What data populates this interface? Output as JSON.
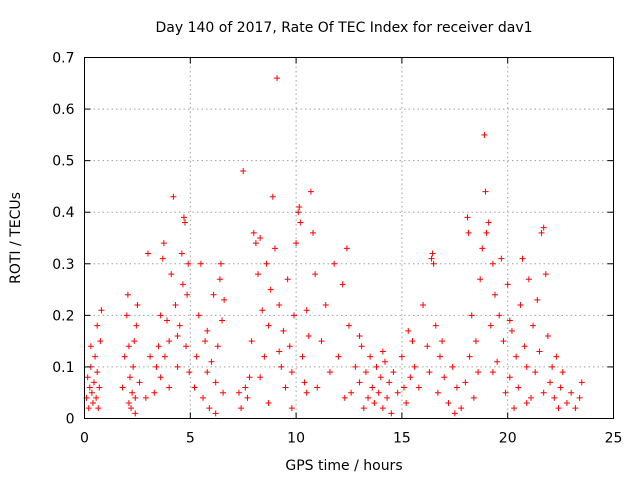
{
  "chart_data": {
    "type": "scatter",
    "title": "Day 140 of 2017, Rate Of TEC Index for receiver dav1",
    "xlabel": "GPS time / hours",
    "ylabel": "ROTI / TECUs",
    "xlim": [
      0,
      25
    ],
    "ylim": [
      0,
      0.7
    ],
    "xticks": [
      0,
      5,
      10,
      15,
      20,
      25
    ],
    "xtick_labels": [
      "0",
      "5",
      "10",
      "15",
      "20",
      "25"
    ],
    "yticks": [
      0,
      0.1,
      0.2,
      0.3,
      0.4,
      0.5,
      0.6,
      0.7
    ],
    "ytick_labels": [
      "0",
      "0.1",
      "0.2",
      "0.3",
      "0.4",
      "0.5",
      "0.6",
      "0.7"
    ],
    "grid": true,
    "marker": "+",
    "color": "#ff0000",
    "series": [
      {
        "points": [
          [
            0.1,
            0.04
          ],
          [
            0.15,
            0.08
          ],
          [
            0.2,
            0.02
          ],
          [
            0.25,
            0.06
          ],
          [
            0.3,
            0.1
          ],
          [
            0.35,
            0.05
          ],
          [
            0.4,
            0.03
          ],
          [
            0.45,
            0.07
          ],
          [
            0.5,
            0.12
          ],
          [
            0.55,
            0.04
          ],
          [
            0.6,
            0.09
          ],
          [
            0.65,
            0.02
          ],
          [
            0.7,
            0.06
          ],
          [
            0.75,
            0.15
          ],
          [
            0.8,
            0.21
          ],
          [
            0.3,
            0.14
          ],
          [
            0.6,
            0.18
          ],
          [
            1.8,
            0.06
          ],
          [
            1.9,
            0.12
          ],
          [
            2.0,
            0.2
          ],
          [
            2.05,
            0.24
          ],
          [
            2.1,
            0.03
          ],
          [
            2.15,
            0.08
          ],
          [
            2.2,
            0.02
          ],
          [
            2.25,
            0.05
          ],
          [
            2.3,
            0.1
          ],
          [
            2.35,
            0.15
          ],
          [
            2.4,
            0.04
          ],
          [
            2.45,
            0.18
          ],
          [
            2.5,
            0.22
          ],
          [
            2.6,
            0.07
          ],
          [
            2.1,
            0.14
          ],
          [
            2.4,
            0.01
          ],
          [
            2.9,
            0.04
          ],
          [
            3.0,
            0.32
          ],
          [
            3.1,
            0.12
          ],
          [
            3.3,
            0.05
          ],
          [
            3.4,
            0.1
          ],
          [
            3.5,
            0.14
          ],
          [
            3.6,
            0.08
          ],
          [
            3.7,
            0.31
          ],
          [
            3.75,
            0.34
          ],
          [
            3.8,
            0.12
          ],
          [
            3.9,
            0.19
          ],
          [
            4.0,
            0.15
          ],
          [
            4.1,
            0.28
          ],
          [
            4.2,
            0.43
          ],
          [
            4.3,
            0.22
          ],
          [
            4.4,
            0.1
          ],
          [
            4.5,
            0.18
          ],
          [
            4.6,
            0.32
          ],
          [
            4.65,
            0.26
          ],
          [
            4.7,
            0.39
          ],
          [
            4.75,
            0.38
          ],
          [
            4.8,
            0.14
          ],
          [
            4.85,
            0.24
          ],
          [
            4.9,
            0.3
          ],
          [
            4.95,
            0.09
          ],
          [
            3.6,
            0.2
          ],
          [
            4.0,
            0.06
          ],
          [
            4.4,
            0.16
          ],
          [
            5.2,
            0.06
          ],
          [
            5.3,
            0.12
          ],
          [
            5.4,
            0.2
          ],
          [
            5.5,
            0.3
          ],
          [
            5.6,
            0.04
          ],
          [
            5.7,
            0.15
          ],
          [
            5.8,
            0.09
          ],
          [
            5.9,
            0.02
          ],
          [
            6.0,
            0.11
          ],
          [
            6.1,
            0.24
          ],
          [
            6.2,
            0.07
          ],
          [
            6.3,
            0.14
          ],
          [
            6.4,
            0.27
          ],
          [
            6.45,
            0.3
          ],
          [
            6.5,
            0.19
          ],
          [
            6.55,
            0.05
          ],
          [
            6.6,
            0.23
          ],
          [
            5.8,
            0.17
          ],
          [
            6.2,
            0.01
          ],
          [
            7.3,
            0.05
          ],
          [
            7.4,
            0.02
          ],
          [
            7.5,
            0.48
          ],
          [
            7.6,
            0.06
          ],
          [
            7.7,
            0.04
          ],
          [
            7.8,
            0.08
          ],
          [
            7.9,
            0.15
          ],
          [
            8.0,
            0.36
          ],
          [
            8.1,
            0.34
          ],
          [
            8.2,
            0.28
          ],
          [
            8.3,
            0.35
          ],
          [
            8.4,
            0.21
          ],
          [
            8.5,
            0.12
          ],
          [
            8.6,
            0.3
          ],
          [
            8.7,
            0.18
          ],
          [
            8.8,
            0.25
          ],
          [
            8.9,
            0.43
          ],
          [
            9.0,
            0.33
          ],
          [
            9.1,
            0.66
          ],
          [
            9.2,
            0.22
          ],
          [
            9.3,
            0.1
          ],
          [
            9.4,
            0.17
          ],
          [
            9.5,
            0.06
          ],
          [
            9.6,
            0.27
          ],
          [
            9.7,
            0.14
          ],
          [
            9.8,
            0.09
          ],
          [
            9.9,
            0.2
          ],
          [
            10.0,
            0.34
          ],
          [
            10.1,
            0.4
          ],
          [
            10.15,
            0.41
          ],
          [
            10.2,
            0.38
          ],
          [
            10.3,
            0.12
          ],
          [
            10.4,
            0.07
          ],
          [
            10.5,
            0.21
          ],
          [
            10.6,
            0.16
          ],
          [
            10.7,
            0.44
          ],
          [
            10.8,
            0.36
          ],
          [
            10.9,
            0.28
          ],
          [
            8.3,
            0.08
          ],
          [
            8.7,
            0.03
          ],
          [
            9.2,
            0.13
          ],
          [
            9.8,
            0.02
          ],
          [
            10.5,
            0.05
          ],
          [
            11.0,
            0.06
          ],
          [
            11.2,
            0.15
          ],
          [
            11.4,
            0.22
          ],
          [
            11.6,
            0.09
          ],
          [
            11.8,
            0.3
          ],
          [
            12.0,
            0.12
          ],
          [
            12.2,
            0.26
          ],
          [
            12.4,
            0.33
          ],
          [
            12.5,
            0.18
          ],
          [
            12.6,
            0.05
          ],
          [
            12.8,
            0.1
          ],
          [
            13.0,
            0.07
          ],
          [
            13.1,
            0.14
          ],
          [
            13.2,
            0.02
          ],
          [
            13.3,
            0.09
          ],
          [
            13.4,
            0.04
          ],
          [
            13.5,
            0.12
          ],
          [
            13.6,
            0.06
          ],
          [
            13.7,
            0.03
          ],
          [
            13.8,
            0.1
          ],
          [
            13.9,
            0.05
          ],
          [
            14.0,
            0.08
          ],
          [
            14.1,
            0.02
          ],
          [
            14.2,
            0.11
          ],
          [
            14.3,
            0.04
          ],
          [
            14.4,
            0.07
          ],
          [
            14.5,
            0.01
          ],
          [
            14.6,
            0.09
          ],
          [
            14.8,
            0.05
          ],
          [
            15.0,
            0.12
          ],
          [
            15.2,
            0.03
          ],
          [
            15.3,
            0.17
          ],
          [
            15.4,
            0.08
          ],
          [
            15.5,
            0.15
          ],
          [
            15.6,
            0.1
          ],
          [
            15.8,
            0.06
          ],
          [
            16.0,
            0.22
          ],
          [
            16.2,
            0.14
          ],
          [
            16.3,
            0.09
          ],
          [
            16.4,
            0.31
          ],
          [
            16.45,
            0.32
          ],
          [
            16.5,
            0.3
          ],
          [
            16.6,
            0.18
          ],
          [
            16.7,
            0.05
          ],
          [
            16.8,
            0.12
          ],
          [
            17.0,
            0.08
          ],
          [
            17.2,
            0.03
          ],
          [
            17.4,
            0.1
          ],
          [
            17.6,
            0.06
          ],
          [
            17.8,
            0.02
          ],
          [
            12.3,
            0.04
          ],
          [
            13.0,
            0.16
          ],
          [
            14.1,
            0.13
          ],
          [
            15.1,
            0.06
          ],
          [
            16.9,
            0.15
          ],
          [
            17.5,
            0.01
          ],
          [
            18.0,
            0.07
          ],
          [
            18.1,
            0.39
          ],
          [
            18.15,
            0.36
          ],
          [
            18.2,
            0.12
          ],
          [
            18.3,
            0.2
          ],
          [
            18.4,
            0.04
          ],
          [
            18.5,
            0.15
          ],
          [
            18.6,
            0.09
          ],
          [
            18.7,
            0.27
          ],
          [
            18.8,
            0.33
          ],
          [
            18.9,
            0.55
          ],
          [
            18.95,
            0.44
          ],
          [
            19.0,
            0.36
          ],
          [
            19.1,
            0.38
          ],
          [
            19.2,
            0.18
          ],
          [
            19.3,
            0.3
          ],
          [
            19.4,
            0.24
          ],
          [
            19.5,
            0.11
          ],
          [
            19.6,
            0.2
          ],
          [
            19.7,
            0.31
          ],
          [
            19.8,
            0.15
          ],
          [
            19.9,
            0.05
          ],
          [
            20.0,
            0.26
          ],
          [
            20.1,
            0.08
          ],
          [
            20.2,
            0.17
          ],
          [
            20.3,
            0.02
          ],
          [
            20.4,
            0.12
          ],
          [
            20.5,
            0.06
          ],
          [
            20.6,
            0.22
          ],
          [
            20.7,
            0.31
          ],
          [
            20.8,
            0.14
          ],
          [
            20.9,
            0.1
          ],
          [
            21.0,
            0.27
          ],
          [
            21.1,
            0.04
          ],
          [
            21.2,
            0.18
          ],
          [
            21.3,
            0.09
          ],
          [
            21.4,
            0.23
          ],
          [
            21.5,
            0.13
          ],
          [
            21.6,
            0.36
          ],
          [
            21.7,
            0.37
          ],
          [
            21.8,
            0.28
          ],
          [
            21.9,
            0.16
          ],
          [
            22.0,
            0.07
          ],
          [
            22.1,
            0.1
          ],
          [
            22.2,
            0.04
          ],
          [
            22.3,
            0.12
          ],
          [
            22.4,
            0.02
          ],
          [
            22.5,
            0.06
          ],
          [
            22.6,
            0.09
          ],
          [
            22.8,
            0.03
          ],
          [
            23.0,
            0.05
          ],
          [
            23.2,
            0.02
          ],
          [
            23.4,
            0.04
          ],
          [
            23.5,
            0.07
          ],
          [
            19.3,
            0.09
          ],
          [
            20.1,
            0.19
          ],
          [
            20.9,
            0.03
          ],
          [
            21.7,
            0.05
          ]
        ]
      }
    ]
  }
}
